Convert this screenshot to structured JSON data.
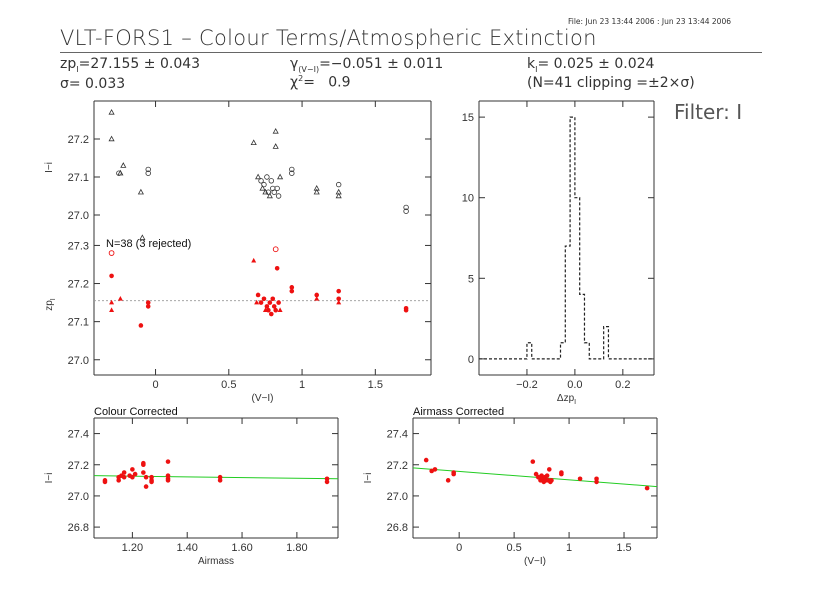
{
  "file_stamp": "File: Jun 23 13:44 2006 : Jun 23 13:44 2006",
  "title": "VLT-FORS1 – Colour Terms/Atmospheric Extinction",
  "stats": {
    "zp_label": "zp",
    "zp_sub": "I",
    "zp_value": "=27.155 ± 0.043",
    "sigma": "σ= 0.033",
    "gamma_label": "γ",
    "gamma_sub": "(V−I)",
    "gamma_value": "=−0.051 ± 0.011",
    "chi2_label": "χ",
    "chi2_sup": "2",
    "chi2_value": "=   0.9",
    "k_label": "k",
    "k_sub": "I",
    "k_value": "= 0.025 ± 0.024",
    "clipping": "(N=41 clipping =±2×σ)"
  },
  "filter_label": "Filter: I",
  "colors": {
    "data": "#ee1111",
    "fit": "#22cc22",
    "axis": "#333333",
    "black_markers": "#333333"
  },
  "chart_data": [
    {
      "id": "colour-raw",
      "type": "scatter",
      "ylabel": "I−i",
      "xlim": [
        -0.42,
        1.88
      ],
      "ylim": [
        26.95,
        27.3
      ],
      "yticks": [
        "27.0",
        "27.1",
        "27.2"
      ],
      "ytick_values": [
        27.0,
        27.1,
        27.2
      ],
      "xtick_values": [
        0,
        0.5,
        1.0,
        1.5
      ],
      "series": [
        {
          "marker": "triangle",
          "points": [
            [
              -0.3,
              27.27
            ],
            [
              -0.3,
              27.2
            ],
            [
              -0.24,
              27.11
            ],
            [
              -0.22,
              27.13
            ],
            [
              -0.1,
              27.06
            ],
            [
              -0.09,
              26.94
            ],
            [
              0.67,
              27.19
            ],
            [
              0.7,
              27.1
            ],
            [
              0.73,
              27.07
            ],
            [
              0.75,
              27.06
            ],
            [
              0.78,
              27.05
            ],
            [
              0.82,
              27.22
            ],
            [
              0.82,
              27.18
            ],
            [
              0.85,
              27.1
            ],
            [
              1.1,
              27.07
            ],
            [
              1.1,
              27.06
            ],
            [
              1.25,
              27.06
            ],
            [
              1.25,
              27.05
            ]
          ]
        },
        {
          "marker": "circle",
          "points": [
            [
              -0.25,
              27.11
            ],
            [
              -0.05,
              27.12
            ],
            [
              -0.05,
              27.11
            ],
            [
              0.72,
              27.09
            ],
            [
              0.74,
              27.08
            ],
            [
              0.76,
              27.1
            ],
            [
              0.77,
              27.06
            ],
            [
              0.79,
              27.09
            ],
            [
              0.8,
              27.07
            ],
            [
              0.81,
              27.06
            ],
            [
              0.83,
              27.07
            ],
            [
              0.84,
              27.05
            ],
            [
              0.93,
              27.12
            ],
            [
              0.93,
              27.11
            ],
            [
              1.25,
              27.08
            ],
            [
              1.71,
              27.02
            ],
            [
              1.71,
              27.01
            ]
          ]
        }
      ]
    },
    {
      "id": "colour-zp",
      "type": "scatter",
      "annotation": "N=38 (3 rejected)",
      "ylabel": "zp",
      "ylabel_sub": "I",
      "xlabel": "(V−I)",
      "xlim": [
        -0.42,
        1.88
      ],
      "ylim": [
        26.96,
        27.33
      ],
      "yticks": [
        "27.0",
        "27.1",
        "27.2",
        "27.3"
      ],
      "ytick_values": [
        27.0,
        27.1,
        27.2,
        27.3
      ],
      "xticks": [
        "0",
        "0.5",
        "1",
        "1.5"
      ],
      "xtick_values": [
        0,
        0.5,
        1.0,
        1.5
      ],
      "reference_line": 27.155,
      "series": [
        {
          "marker": "filled-circle",
          "points": [
            [
              -0.3,
              27.22
            ],
            [
              -0.05,
              27.15
            ],
            [
              -0.05,
              27.14
            ],
            [
              -0.1,
              27.09
            ],
            [
              0.7,
              27.17
            ],
            [
              0.72,
              27.15
            ],
            [
              0.74,
              27.16
            ],
            [
              0.76,
              27.14
            ],
            [
              0.77,
              27.13
            ],
            [
              0.78,
              27.15
            ],
            [
              0.79,
              27.12
            ],
            [
              0.8,
              27.16
            ],
            [
              0.81,
              27.14
            ],
            [
              0.82,
              27.13
            ],
            [
              0.83,
              27.24
            ],
            [
              0.84,
              27.15
            ],
            [
              0.93,
              27.19
            ],
            [
              0.93,
              27.18
            ],
            [
              1.1,
              27.17
            ],
            [
              1.25,
              27.18
            ],
            [
              1.25,
              27.16
            ],
            [
              1.71,
              27.13
            ],
            [
              1.71,
              27.135
            ]
          ]
        },
        {
          "marker": "filled-triangle",
          "points": [
            [
              -0.3,
              27.15
            ],
            [
              -0.3,
              27.13
            ],
            [
              -0.24,
              27.16
            ],
            [
              0.67,
              27.26
            ],
            [
              0.69,
              27.15
            ],
            [
              0.75,
              27.13
            ],
            [
              0.85,
              27.13
            ],
            [
              1.1,
              27.16
            ],
            [
              1.25,
              27.15
            ]
          ]
        },
        {
          "marker": "open-circle",
          "points": [
            [
              -0.3,
              27.28
            ],
            [
              0.82,
              27.29
            ]
          ]
        }
      ]
    },
    {
      "id": "histogram",
      "type": "bar",
      "xlabel": "Δzp",
      "xlabel_sub": "I",
      "xlim": [
        -0.4,
        0.33
      ],
      "ylim": [
        -1,
        16
      ],
      "xticks": [
        "−0.2",
        "0.0",
        "0.2"
      ],
      "xtick_values": [
        -0.2,
        0.0,
        0.2
      ],
      "yticks": [
        "0",
        "5",
        "10",
        "15"
      ],
      "ytick_values": [
        0,
        5,
        10,
        15
      ],
      "bin_edges": [
        -0.4,
        -0.2,
        -0.18,
        -0.06,
        -0.04,
        -0.02,
        0.0,
        0.02,
        0.04,
        0.06,
        0.12,
        0.14,
        0.33
      ],
      "counts": [
        0,
        1,
        0,
        1,
        7,
        15,
        10,
        4,
        1,
        0,
        2,
        0
      ]
    },
    {
      "id": "colour-corrected",
      "type": "scatter",
      "title": "Colour Corrected",
      "ylabel": "I−i",
      "xlabel": "Airmass",
      "xlim": [
        1.06,
        1.95
      ],
      "ylim": [
        26.73,
        27.5
      ],
      "yticks": [
        "26.8",
        "27.0",
        "27.2",
        "27.4"
      ],
      "ytick_values": [
        26.8,
        27.0,
        27.2,
        27.4
      ],
      "xticks": [
        "1.20",
        "1.40",
        "1.60",
        "1.80"
      ],
      "xtick_values": [
        1.2,
        1.4,
        1.6,
        1.8
      ],
      "fit_line": [
        [
          1.06,
          27.13
        ],
        [
          1.95,
          27.11
        ]
      ],
      "series": [
        {
          "marker": "filled-circle",
          "points": [
            [
              1.1,
              27.1
            ],
            [
              1.1,
              27.09
            ],
            [
              1.15,
              27.1
            ],
            [
              1.15,
              27.12
            ],
            [
              1.16,
              27.13
            ],
            [
              1.17,
              27.15
            ],
            [
              1.17,
              27.12
            ],
            [
              1.19,
              27.13
            ],
            [
              1.2,
              27.17
            ],
            [
              1.2,
              27.12
            ],
            [
              1.21,
              27.14
            ],
            [
              1.24,
              27.15
            ],
            [
              1.24,
              27.2
            ],
            [
              1.24,
              27.21
            ],
            [
              1.25,
              27.06
            ],
            [
              1.25,
              27.12
            ],
            [
              1.27,
              27.12
            ],
            [
              1.27,
              27.1
            ],
            [
              1.27,
              27.09
            ],
            [
              1.33,
              27.22
            ],
            [
              1.33,
              27.13
            ],
            [
              1.33,
              27.11
            ],
            [
              1.33,
              27.1
            ],
            [
              1.52,
              27.12
            ],
            [
              1.52,
              27.1
            ],
            [
              1.91,
              27.11
            ],
            [
              1.91,
              27.09
            ]
          ]
        }
      ]
    },
    {
      "id": "airmass-corrected",
      "type": "scatter",
      "title": "Airmass Corrected",
      "ylabel": "I−i",
      "xlabel": "(V−I)",
      "xlim": [
        -0.42,
        1.8
      ],
      "ylim": [
        26.73,
        27.5
      ],
      "yticks": [
        "26.8",
        "27.0",
        "27.2",
        "27.4"
      ],
      "ytick_values": [
        26.8,
        27.0,
        27.2,
        27.4
      ],
      "xticks": [
        "0",
        "0.5",
        "1",
        "1.5"
      ],
      "xtick_values": [
        0,
        0.5,
        1.0,
        1.5
      ],
      "fit_line": [
        [
          -0.42,
          27.18
        ],
        [
          1.8,
          27.06
        ]
      ],
      "series": [
        {
          "marker": "filled-circle",
          "points": [
            [
              -0.3,
              27.23
            ],
            [
              -0.25,
              27.16
            ],
            [
              -0.22,
              27.17
            ],
            [
              -0.1,
              27.1
            ],
            [
              -0.05,
              27.15
            ],
            [
              -0.05,
              27.14
            ],
            [
              0.67,
              27.22
            ],
            [
              0.7,
              27.14
            ],
            [
              0.72,
              27.12
            ],
            [
              0.74,
              27.1
            ],
            [
              0.75,
              27.13
            ],
            [
              0.76,
              27.11
            ],
            [
              0.77,
              27.09
            ],
            [
              0.78,
              27.12
            ],
            [
              0.79,
              27.1
            ],
            [
              0.8,
              27.13
            ],
            [
              0.81,
              27.1
            ],
            [
              0.82,
              27.17
            ],
            [
              0.83,
              27.09
            ],
            [
              0.84,
              27.1
            ],
            [
              0.93,
              27.15
            ],
            [
              0.93,
              27.14
            ],
            [
              1.1,
              27.11
            ],
            [
              1.25,
              27.11
            ],
            [
              1.25,
              27.09
            ],
            [
              1.71,
              27.05
            ]
          ]
        }
      ]
    }
  ]
}
